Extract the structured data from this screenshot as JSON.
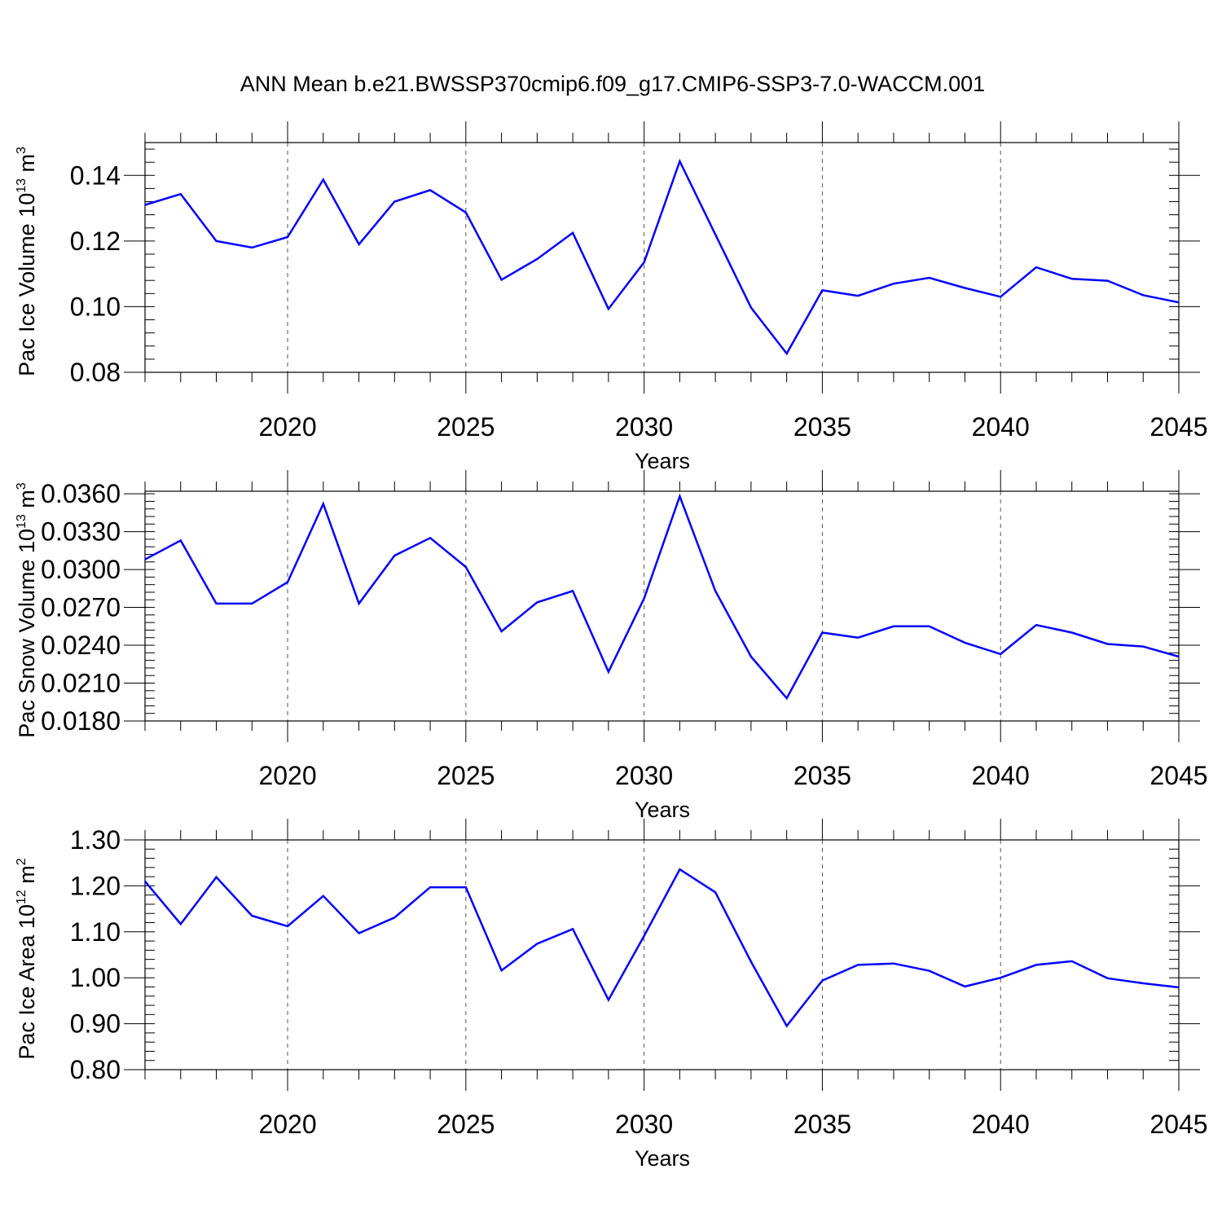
{
  "title": "ANN Mean b.e21.BWSSP370cmip6.f09_g17.CMIP6-SSP3-7.0-WACCM.001",
  "colors": {
    "line": "#0000ff",
    "axis": "#000000",
    "grid": "#555555"
  },
  "chart_data": [
    {
      "type": "line",
      "ylabel_main": "Pac Ice Volume 10",
      "ylabel_exp": "13",
      "ylabel_unit": " m",
      "ylabel_unit_exp": "3",
      "xlabel": "Years",
      "xlim": [
        2016,
        2045
      ],
      "ylim": [
        0.08,
        0.15
      ],
      "yticks": [
        0.08,
        0.1,
        0.12,
        0.14
      ],
      "ytick_labels": [
        "0.08",
        "0.10",
        "0.12",
        "0.14"
      ],
      "xticks": [
        2020,
        2025,
        2030,
        2035,
        2040,
        2045
      ],
      "xtick_labels": [
        "2020",
        "2025",
        "2030",
        "2035",
        "2040",
        "2045"
      ],
      "x": [
        2016,
        2017,
        2018,
        2019,
        2020,
        2021,
        2022,
        2023,
        2024,
        2025,
        2026,
        2027,
        2028,
        2029,
        2030,
        2031,
        2032,
        2033,
        2034,
        2035,
        2036,
        2037,
        2038,
        2039,
        2040,
        2041,
        2042,
        2043,
        2044,
        2045
      ],
      "values": [
        0.131,
        0.1343,
        0.12,
        0.118,
        0.1212,
        0.1387,
        0.119,
        0.132,
        0.1355,
        0.1287,
        0.1082,
        0.1145,
        0.1225,
        0.0993,
        0.1135,
        0.1443,
        0.122,
        0.0997,
        0.0857,
        0.105,
        0.1033,
        0.107,
        0.1088,
        0.1057,
        0.103,
        0.112,
        0.1085,
        0.1079,
        0.1035,
        0.1013
      ]
    },
    {
      "type": "line",
      "ylabel_main": "Pac Snow Volume 10",
      "ylabel_exp": "13",
      "ylabel_unit": " m",
      "ylabel_unit_exp": "3",
      "xlabel": "Years",
      "xlim": [
        2016,
        2045
      ],
      "ylim": [
        0.018,
        0.0362
      ],
      "yticks": [
        0.018,
        0.021,
        0.024,
        0.027,
        0.03,
        0.033,
        0.036
      ],
      "ytick_labels": [
        "0.0180",
        "0.0210",
        "0.0240",
        "0.0270",
        "0.0300",
        "0.0330",
        "0.0360"
      ],
      "xticks": [
        2020,
        2025,
        2030,
        2035,
        2040,
        2045
      ],
      "xtick_labels": [
        "2020",
        "2025",
        "2030",
        "2035",
        "2040",
        "2045"
      ],
      "x": [
        2016,
        2017,
        2018,
        2019,
        2020,
        2021,
        2022,
        2023,
        2024,
        2025,
        2026,
        2027,
        2028,
        2029,
        2030,
        2031,
        2032,
        2033,
        2034,
        2035,
        2036,
        2037,
        2038,
        2039,
        2040,
        2041,
        2042,
        2043,
        2044,
        2045
      ],
      "values": [
        0.0308,
        0.0323,
        0.0273,
        0.0273,
        0.029,
        0.0352,
        0.0273,
        0.0311,
        0.0325,
        0.0302,
        0.0251,
        0.0274,
        0.0283,
        0.0219,
        0.0277,
        0.0358,
        0.0283,
        0.0231,
        0.0198,
        0.025,
        0.0246,
        0.0255,
        0.0255,
        0.0242,
        0.0233,
        0.0256,
        0.025,
        0.0241,
        0.0239,
        0.0231
      ]
    },
    {
      "type": "line",
      "ylabel_main": "Pac Ice Area 10",
      "ylabel_exp": "12",
      "ylabel_unit": " m",
      "ylabel_unit_exp": "2",
      "xlabel": "Years",
      "xlim": [
        2016,
        2045
      ],
      "ylim": [
        0.8,
        1.3
      ],
      "yticks": [
        0.8,
        0.9,
        1.0,
        1.1,
        1.2,
        1.3
      ],
      "ytick_labels": [
        "0.80",
        "0.90",
        "1.00",
        "1.10",
        "1.20",
        "1.30"
      ],
      "xticks": [
        2020,
        2025,
        2030,
        2035,
        2040,
        2045
      ],
      "xtick_labels": [
        "2020",
        "2025",
        "2030",
        "2035",
        "2040",
        "2045"
      ],
      "x": [
        2016,
        2017,
        2018,
        2019,
        2020,
        2021,
        2022,
        2023,
        2024,
        2025,
        2026,
        2027,
        2028,
        2029,
        2030,
        2031,
        2032,
        2033,
        2034,
        2035,
        2036,
        2037,
        2038,
        2039,
        2040,
        2041,
        2042,
        2043,
        2044,
        2045
      ],
      "values": [
        1.21,
        1.117,
        1.219,
        1.135,
        1.112,
        1.178,
        1.097,
        1.131,
        1.197,
        1.197,
        1.016,
        1.074,
        1.106,
        0.952,
        1.091,
        1.236,
        1.186,
        1.035,
        0.895,
        0.994,
        1.028,
        1.031,
        1.015,
        0.981,
        1.0,
        1.028,
        1.036,
        0.999,
        0.988,
        0.979
      ]
    }
  ]
}
